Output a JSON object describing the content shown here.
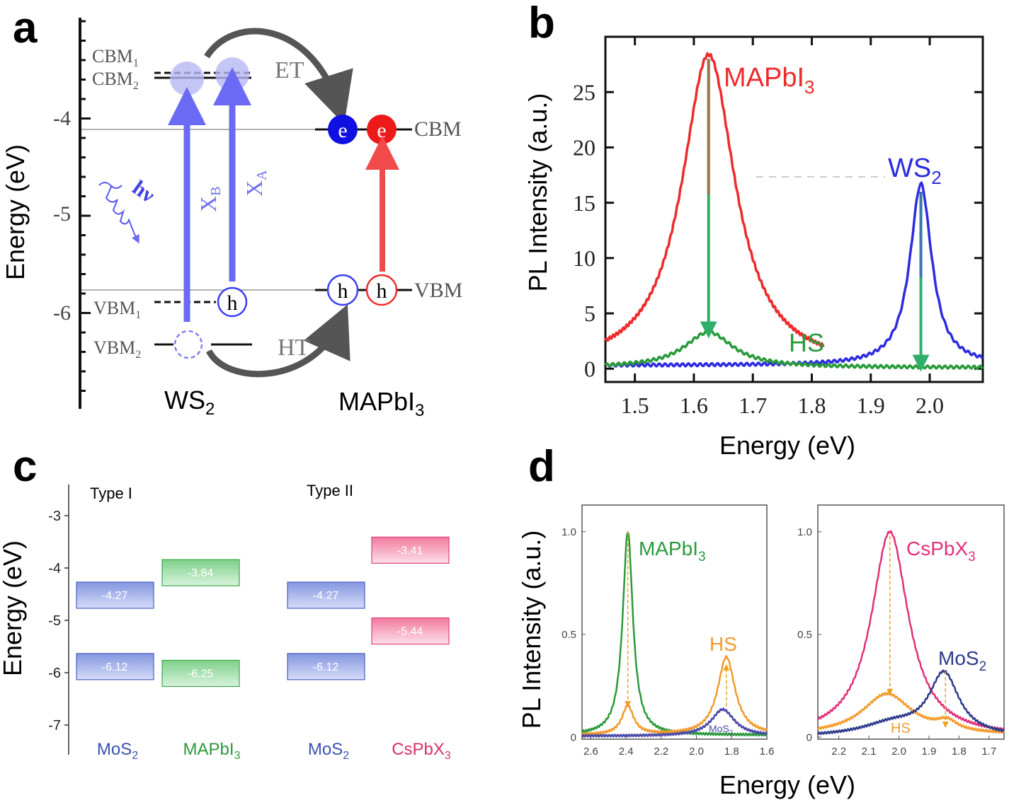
{
  "panel_labels": [
    "a",
    "b",
    "c",
    "d"
  ],
  "colors": {
    "blue": "#3a3ff0",
    "red": "#ee2b2b",
    "green": "#2a9a3a",
    "orange": "#f39a2e",
    "navy": "#2e3a8c",
    "pink": "#e2307a",
    "mos2_box": "#8a9be0",
    "mapbi3_box": "#8fd49a",
    "cspbx3_box": "#f28aa8"
  },
  "panel_a": {
    "ylabel": "Energy (eV)",
    "yticks": [
      "-4",
      "-5",
      "-6"
    ],
    "levels": {
      "CBM1": "CBM",
      "CBM1_sub": "1",
      "CBM2": "CBM",
      "CBM2_sub": "2",
      "VBM1": "VBM",
      "VBM1_sub": "1",
      "VBM2": "VBM",
      "VBM2_sub": "2",
      "CBM": "CBM",
      "VBM": "VBM"
    },
    "transitions": {
      "XB": "X",
      "XB_sub": "B",
      "XA": "X",
      "XA_sub": "A",
      "photon": "hν"
    },
    "transfer": {
      "ET": "ET",
      "HT": "HT"
    },
    "carriers": {
      "electron": "e",
      "hole": "h"
    },
    "materials": {
      "ws2": "WS",
      "ws2_sub": "2",
      "mapbi3": "MAPbI",
      "mapbi3_sub": "3"
    }
  },
  "panel_c": {
    "ylabel": "Energy (eV)",
    "yticks": [
      "-3",
      "-4",
      "-5",
      "-6",
      "-7"
    ],
    "types": [
      "Type I",
      "Type II"
    ],
    "materials": [
      {
        "name": "MoS",
        "sub": "2",
        "cbm": "-4.27",
        "vbm": "-6.12",
        "color": "#3a52b0"
      },
      {
        "name": "MAPbI",
        "sub": "3",
        "cbm": "-3.84",
        "vbm": "-6.25",
        "color": "#2a9a3a"
      },
      {
        "name": "MoS",
        "sub": "2",
        "cbm": "-4.27",
        "vbm": "-6.12",
        "color": "#3a52b0"
      },
      {
        "name": "CsPbX",
        "sub": "3",
        "cbm": "-3.41",
        "vbm": "-5.44",
        "color": "#d9306a"
      }
    ]
  },
  "chart_data": [
    {
      "type": "line",
      "panel": "b",
      "xlabel": "Energy (eV)",
      "ylabel": "PL Intensity (a.u.)",
      "xlim": [
        1.45,
        2.09
      ],
      "ylim": [
        -1.2,
        30
      ],
      "xticks": [
        "1.5",
        "1.6",
        "1.7",
        "1.8",
        "1.9",
        "2.0"
      ],
      "yticks": [
        "0",
        "5",
        "10",
        "15",
        "20",
        "25"
      ],
      "series": [
        {
          "name": "MAPbI3",
          "label": "MAPbI",
          "label_sub": "3",
          "color": "#ee2b2b",
          "peaks": [
            {
              "center": 1.625,
              "height": 28.4,
              "fwhm": 0.11
            }
          ],
          "range": [
            1.45,
            1.82
          ]
        },
        {
          "name": "WS2",
          "label": "WS",
          "label_sub": "2",
          "color": "#2c2ce0",
          "peaks": [
            {
              "center": 1.985,
              "height": 16.4,
              "fwhm": 0.045
            }
          ],
          "baseline": 0.3,
          "range": [
            1.45,
            2.09
          ]
        },
        {
          "name": "HS",
          "label": "HS",
          "label_sub": "",
          "color": "#2a9a3a",
          "peaks": [
            {
              "center": 1.625,
              "height": 3.2,
              "fwhm": 0.1
            }
          ],
          "baseline": 0.1,
          "range": [
            1.45,
            2.09
          ]
        }
      ],
      "annotations": [
        {
          "type": "arrow",
          "x": 1.625,
          "from": 28,
          "to": 3.5
        },
        {
          "type": "arrow",
          "x": 1.985,
          "from": 16,
          "to": 0.5
        }
      ]
    },
    {
      "type": "line",
      "panel": "d-left",
      "xlabel": "Energy (eV)",
      "ylabel": "PL Intensity (a.u.)",
      "xlim": [
        2.65,
        1.6
      ],
      "ylim": [
        -0.01,
        1.13
      ],
      "xticks": [
        "2.6",
        "2.4",
        "2.2",
        "2.0",
        "1.8",
        "1.6"
      ],
      "yticks": [
        "0",
        "0.5",
        "1.0"
      ],
      "series": [
        {
          "name": "MAPbI3",
          "label": "MAPbI",
          "label_sub": "3",
          "color": "#2a9a3a",
          "peaks": [
            {
              "center": 2.39,
              "height": 0.99,
              "fwhm": 0.07
            }
          ],
          "baseline": 0.01
        },
        {
          "name": "HS",
          "label": "HS",
          "label_sub": "",
          "color": "#f39a2e",
          "peaks": [
            {
              "center": 2.39,
              "height": 0.14,
              "fwhm": 0.08
            },
            {
              "center": 1.83,
              "height": 0.38,
              "fwhm": 0.12
            }
          ],
          "baseline": 0.01
        },
        {
          "name": "MoS2",
          "label": "MoS",
          "label_sub": "2",
          "color": "#4a4aa8",
          "peaks": [
            {
              "center": 1.85,
              "height": 0.13,
              "fwhm": 0.16
            }
          ],
          "baseline": 0.005
        }
      ],
      "annotations": [
        {
          "type": "dashed-arrow",
          "x": 2.39,
          "from": 1.0,
          "to": 0.16
        },
        {
          "type": "dashed-arrow",
          "x": 1.83,
          "from": 0.15,
          "to": 0.34
        }
      ]
    },
    {
      "type": "line",
      "panel": "d-right",
      "xlabel": "Energy (eV)",
      "ylabel": "PL Intensity (a.u.)",
      "xlim": [
        2.27,
        1.65
      ],
      "ylim": [
        -0.01,
        1.13
      ],
      "xticks": [
        "2.2",
        "2.1",
        "2.0",
        "1.9",
        "1.8",
        "1.7"
      ],
      "yticks": [
        "0",
        "0.5",
        "1.0"
      ],
      "series": [
        {
          "name": "CsPbX3",
          "label": "CsPbX",
          "label_sub": "3",
          "color": "#e2307a",
          "peaks": [
            {
              "center": 2.03,
              "height": 1.0,
              "fwhm": 0.15
            }
          ]
        },
        {
          "name": "HS",
          "label": "HS",
          "label_sub": "",
          "color": "#f39a2e",
          "peaks": [
            {
              "center": 2.04,
              "height": 0.2,
              "fwhm": 0.2
            },
            {
              "center": 1.84,
              "height": 0.045,
              "fwhm": 0.08
            }
          ],
          "baseline": 0.01
        },
        {
          "name": "MoS2",
          "label": "MoS",
          "label_sub": "2",
          "color": "#2e3a8c",
          "peaks": [
            {
              "center": 1.85,
              "height": 0.3,
              "fwhm": 0.12
            },
            {
              "center": 2.02,
              "height": 0.06,
              "fwhm": 0.25
            }
          ]
        }
      ],
      "annotations": [
        {
          "type": "dashed-arrow",
          "x": 2.03,
          "from": 0.98,
          "to": 0.22
        },
        {
          "type": "dashed-arrow",
          "x": 1.845,
          "from": 0.32,
          "to": 0.06
        }
      ]
    }
  ]
}
